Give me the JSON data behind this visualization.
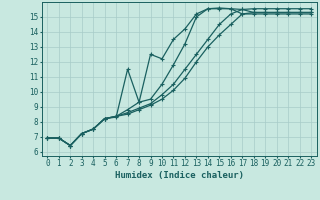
{
  "bg_color": "#c8e8e0",
  "line_color": "#1a6060",
  "grid_color": "#a8ccc8",
  "xlabel": "Humidex (Indice chaleur)",
  "xlabel_fontsize": 6.5,
  "tick_fontsize": 5.5,
  "xlim": [
    -0.5,
    23.5
  ],
  "ylim": [
    5.7,
    16.0
  ],
  "xticks": [
    0,
    1,
    2,
    3,
    4,
    5,
    6,
    7,
    8,
    9,
    10,
    11,
    12,
    13,
    14,
    15,
    16,
    17,
    18,
    19,
    20,
    21,
    22,
    23
  ],
  "yticks": [
    6,
    7,
    8,
    9,
    10,
    11,
    12,
    13,
    14,
    15
  ],
  "line1_x": [
    0,
    1,
    2,
    3,
    4,
    5,
    6,
    7,
    8,
    9,
    10,
    11,
    12,
    13,
    14,
    15,
    16,
    17,
    18,
    19,
    20,
    21,
    22,
    23
  ],
  "line1_y": [
    6.9,
    6.9,
    6.4,
    7.2,
    7.5,
    8.2,
    8.3,
    11.5,
    9.3,
    12.5,
    12.2,
    13.5,
    14.2,
    15.2,
    15.55,
    15.55,
    15.55,
    15.2,
    15.2,
    15.2,
    15.2,
    15.2,
    15.2,
    15.2
  ],
  "line2_x": [
    0,
    1,
    2,
    3,
    4,
    5,
    6,
    7,
    8,
    9,
    10,
    11,
    12,
    13,
    14,
    15,
    16,
    17,
    18,
    19,
    20,
    21,
    22,
    23
  ],
  "line2_y": [
    6.9,
    6.9,
    6.4,
    7.2,
    7.5,
    8.2,
    8.35,
    8.8,
    9.3,
    9.5,
    10.5,
    11.8,
    13.2,
    15.0,
    15.55,
    15.6,
    15.55,
    15.5,
    15.3,
    15.3,
    15.3,
    15.3,
    15.3,
    15.3
  ],
  "line3_x": [
    0,
    1,
    2,
    3,
    4,
    5,
    6,
    7,
    8,
    9,
    10,
    11,
    12,
    13,
    14,
    15,
    16,
    17,
    18,
    19,
    20,
    21,
    22,
    23
  ],
  "line3_y": [
    6.9,
    6.9,
    6.4,
    7.2,
    7.5,
    8.2,
    8.35,
    8.5,
    8.8,
    9.1,
    9.5,
    10.1,
    10.9,
    12.0,
    13.0,
    13.8,
    14.5,
    15.2,
    15.3,
    15.3,
    15.3,
    15.3,
    15.3,
    15.3
  ],
  "line4_x": [
    0,
    1,
    2,
    3,
    4,
    5,
    6,
    7,
    8,
    9,
    10,
    11,
    12,
    13,
    14,
    15,
    16,
    17,
    18,
    19,
    20,
    21,
    22,
    23
  ],
  "line4_y": [
    6.9,
    6.9,
    6.4,
    7.2,
    7.5,
    8.2,
    8.35,
    8.6,
    8.9,
    9.2,
    9.8,
    10.5,
    11.5,
    12.5,
    13.5,
    14.5,
    15.2,
    15.5,
    15.55,
    15.55,
    15.55,
    15.55,
    15.55,
    15.55
  ]
}
